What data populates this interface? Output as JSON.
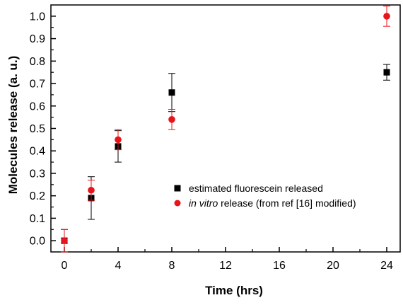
{
  "chart_data": {
    "type": "scatter",
    "xlabel": "Time (hrs)",
    "ylabel": "Molecules release (a. u.)",
    "xlim": [
      -1,
      25
    ],
    "ylim": [
      -0.05,
      1.05
    ],
    "xticks": [
      0,
      4,
      8,
      12,
      16,
      20,
      24
    ],
    "yticks": [
      0.0,
      0.1,
      0.2,
      0.3,
      0.4,
      0.5,
      0.6,
      0.7,
      0.8,
      0.9,
      1.0
    ],
    "ytick_labels": [
      "0.0",
      "0.1",
      "0.2",
      "0.3",
      "0.4",
      "0.5",
      "0.6",
      "0.7",
      "0.8",
      "0.9",
      "1.0"
    ],
    "legend_position": "center-right",
    "series": [
      {
        "name": "estimated fluorescein released",
        "legend_parts": [
          {
            "text": "estimated fluorescein released",
            "italic": false
          }
        ],
        "marker": "square",
        "color": "#000000",
        "x": [
          0,
          2,
          4,
          8,
          24
        ],
        "y": [
          0.0,
          0.19,
          0.42,
          0.66,
          0.75
        ],
        "err": [
          0.05,
          0.095,
          0.07,
          0.085,
          0.035
        ]
      },
      {
        "name": "in vitro release (from ref [16] modified)",
        "legend_parts": [
          {
            "text": "in vitro",
            "italic": true
          },
          {
            "text": " release (from ref [16] modified)",
            "italic": false
          }
        ],
        "marker": "circle",
        "color": "#e8141b",
        "x": [
          0,
          2,
          4,
          8,
          24
        ],
        "y": [
          0.0,
          0.225,
          0.45,
          0.54,
          1.0
        ],
        "err": [
          0.05,
          0.045,
          0.045,
          0.045,
          0.045
        ]
      }
    ]
  }
}
